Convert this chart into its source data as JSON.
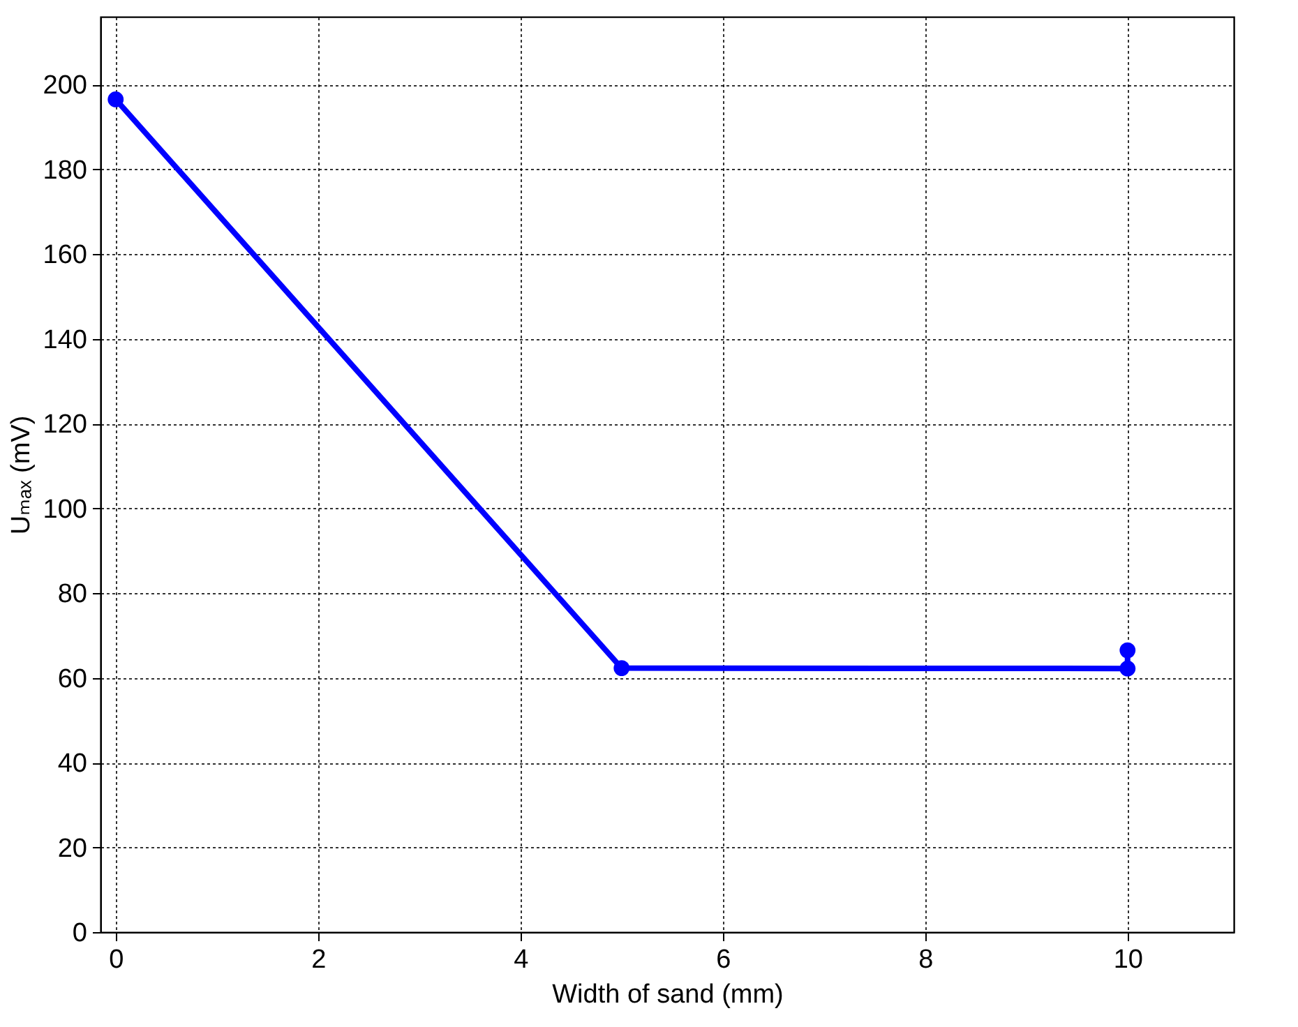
{
  "chart_data": {
    "type": "line",
    "xlabel": "Width of sand (mm)",
    "ylabel": "Uₘₐₓ (mV)",
    "x": [
      0,
      5,
      10,
      10
    ],
    "series": [
      {
        "color": "#0000ff",
        "values": [
          196.5,
          62.3,
          62.2,
          66.5
        ]
      }
    ],
    "xlim": [
      -0.15,
      11.05
    ],
    "xticks": [
      0,
      2,
      4,
      6,
      8,
      10
    ],
    "ylim": [
      0,
      216
    ],
    "yticks": [
      0,
      20,
      40,
      60,
      80,
      100,
      120,
      140,
      160,
      180,
      200
    ],
    "grid": true,
    "marker": "circle",
    "line_style": "solid"
  }
}
